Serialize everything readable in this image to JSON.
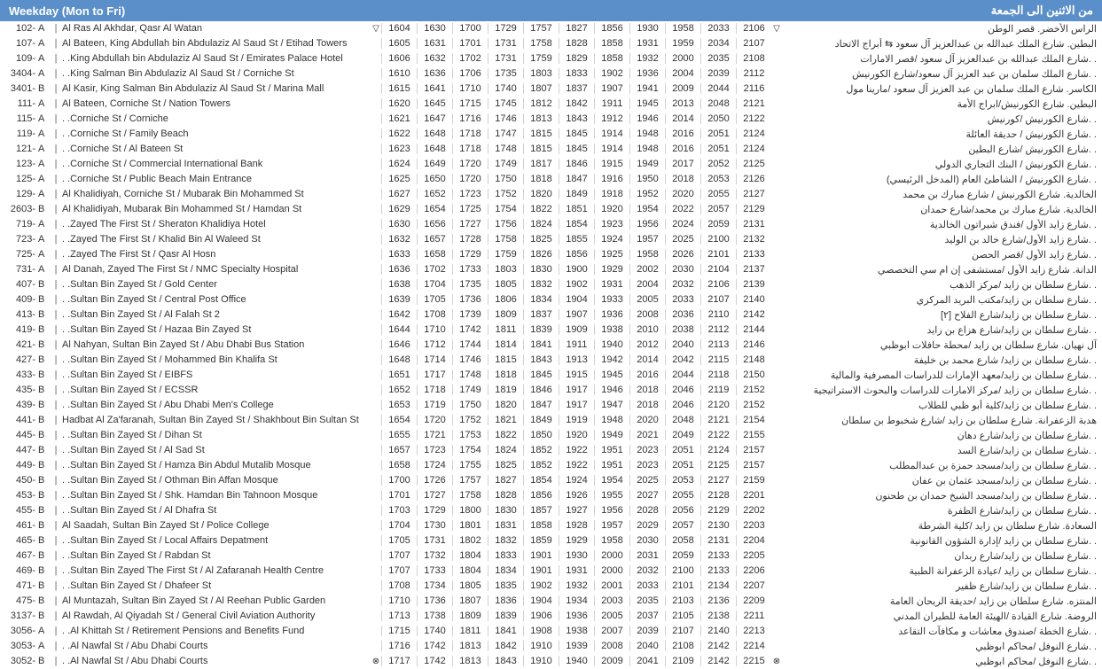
{
  "header": {
    "left": "Weekday (Mon to Fri)",
    "right": "من الاثنين الى الجمعة"
  },
  "colors": {
    "header_bg": "#5b8fc9",
    "header_fg": "#ffffff",
    "text": "#333333",
    "border": "#d0d0d0"
  },
  "rows": [
    {
      "code": "102-",
      "side": "A",
      "stop": "Al Ras Al Akhdar, Qasr Al Watan",
      "marker": "▽",
      "times": [
        "1604",
        "1630",
        "1700",
        "1729",
        "1757",
        "1827",
        "1856",
        "1930",
        "1958",
        "2033",
        "2106"
      ],
      "markerR": "▽",
      "ar": "الراس الأخضر. قصر الوطن"
    },
    {
      "code": "107-",
      "side": "A",
      "stop": "Al Bateen, King Abdullah bin Abdulaziz Al Saud St / Etihad Towers",
      "marker": "",
      "times": [
        "1605",
        "1631",
        "1701",
        "1731",
        "1758",
        "1828",
        "1858",
        "1931",
        "1959",
        "2034",
        "2107"
      ],
      "markerR": "",
      "ar": "البطين. شارع الملك عبدالله بن عبدالعزيز آل سعود ⇆ أبراج الاتحاد"
    },
    {
      "code": "109-",
      "side": "A",
      "stop": ". .King Abdullah bin Abdulaziz Al Saud St / Emirates Palace Hotel",
      "marker": "",
      "times": [
        "1606",
        "1632",
        "1702",
        "1731",
        "1759",
        "1829",
        "1858",
        "1932",
        "2000",
        "2035",
        "2108"
      ],
      "markerR": "",
      "ar": ". .شارع الملك عبدالله بن عبدالعزيز آل سعود /قصر الامارات"
    },
    {
      "code": "3404-",
      "side": "A",
      "stop": ". .King Salman Bin Abdulaziz Al Saud St / Corniche St",
      "marker": "",
      "times": [
        "1610",
        "1636",
        "1706",
        "1735",
        "1803",
        "1833",
        "1902",
        "1936",
        "2004",
        "2039",
        "2112"
      ],
      "markerR": "",
      "ar": ". .شارع الملك سلمان بن عبد العزيز آل سعود/شارع الكورنيش"
    },
    {
      "code": "3401-",
      "side": "B",
      "stop": "Al Kasir, King Salman Bin Abdulaziz Al Saud St / Marina Mall",
      "marker": "",
      "times": [
        "1615",
        "1641",
        "1710",
        "1740",
        "1807",
        "1837",
        "1907",
        "1941",
        "2009",
        "2044",
        "2116"
      ],
      "markerR": "",
      "ar": "الكاسر. شارع الملك سلمان بن عبد العزيز آل سعود /مارينا مول"
    },
    {
      "code": "111-",
      "side": "A",
      "stop": "Al Bateen, Corniche St / Nation Towers",
      "marker": "",
      "times": [
        "1620",
        "1645",
        "1715",
        "1745",
        "1812",
        "1842",
        "1911",
        "1945",
        "2013",
        "2048",
        "2121"
      ],
      "markerR": "",
      "ar": "البطين. شارع الكورنيش/ابراج الأمة"
    },
    {
      "code": "115-",
      "side": "A",
      "stop": ". .Corniche St / Corniche",
      "marker": "",
      "times": [
        "1621",
        "1647",
        "1716",
        "1746",
        "1813",
        "1843",
        "1912",
        "1946",
        "2014",
        "2050",
        "2122"
      ],
      "markerR": "",
      "ar": ". .شارع الكورنيش /كورنيش"
    },
    {
      "code": "119-",
      "side": "A",
      "stop": ". .Corniche St / Family Beach",
      "marker": "",
      "times": [
        "1622",
        "1648",
        "1718",
        "1747",
        "1815",
        "1845",
        "1914",
        "1948",
        "2016",
        "2051",
        "2124"
      ],
      "markerR": "",
      "ar": ". .شارع الكورنيش / حديقة العائلة"
    },
    {
      "code": "121-",
      "side": "A",
      "stop": ". .Corniche St / Al Bateen St",
      "marker": "",
      "times": [
        "1623",
        "1648",
        "1718",
        "1748",
        "1815",
        "1845",
        "1914",
        "1948",
        "2016",
        "2051",
        "2124"
      ],
      "markerR": "",
      "ar": ". .شارع الكورنيش /شارع البطين"
    },
    {
      "code": "123-",
      "side": "A",
      "stop": ". .Corniche St / Commercial International Bank",
      "marker": "",
      "times": [
        "1624",
        "1649",
        "1720",
        "1749",
        "1817",
        "1846",
        "1915",
        "1949",
        "2017",
        "2052",
        "2125"
      ],
      "markerR": "",
      "ar": ". .شارع الكورنيش / البنك التجاري الدولي"
    },
    {
      "code": "125-",
      "side": "A",
      "stop": ". .Corniche St / Public Beach Main Entrance",
      "marker": "",
      "times": [
        "1625",
        "1650",
        "1720",
        "1750",
        "1818",
        "1847",
        "1916",
        "1950",
        "2018",
        "2053",
        "2126"
      ],
      "markerR": "",
      "ar": ". .شارع الكورنيش / الشاطئ العام (المدخل الرئيسي)"
    },
    {
      "code": "129-",
      "side": "A",
      "stop": "Al Khalidiyah, Corniche St / Mubarak Bin Mohammed St",
      "marker": "",
      "times": [
        "1627",
        "1652",
        "1723",
        "1752",
        "1820",
        "1849",
        "1918",
        "1952",
        "2020",
        "2055",
        "2127"
      ],
      "markerR": "",
      "ar": "الخالدية. شارع الكورنيش / شارع مبارك بن محمد"
    },
    {
      "code": "2603-",
      "side": "B",
      "stop": "Al Khalidiyah, Mubarak Bin Mohammed St / Hamdan St",
      "marker": "",
      "times": [
        "1629",
        "1654",
        "1725",
        "1754",
        "1822",
        "1851",
        "1920",
        "1954",
        "2022",
        "2057",
        "2129"
      ],
      "markerR": "",
      "ar": "الخالدية. شارع مبارك بن محمد/شارع حمدان"
    },
    {
      "code": "719-",
      "side": "A",
      "stop": ". .Zayed The First St / Sheraton Khalidiya Hotel",
      "marker": "",
      "times": [
        "1630",
        "1656",
        "1727",
        "1756",
        "1824",
        "1854",
        "1923",
        "1956",
        "2024",
        "2059",
        "2131"
      ],
      "markerR": "",
      "ar": ". .شارع زايد الأول /فندق شيراتون الخالدية"
    },
    {
      "code": "723-",
      "side": "A",
      "stop": ". .Zayed The First St / Khalid Bin Al Waleed St",
      "marker": "",
      "times": [
        "1632",
        "1657",
        "1728",
        "1758",
        "1825",
        "1855",
        "1924",
        "1957",
        "2025",
        "2100",
        "2132"
      ],
      "markerR": "",
      "ar": ". .شارع زايد الأول/شارع خالد بن الوليد"
    },
    {
      "code": "725-",
      "side": "A",
      "stop": ". .Zayed The First St / Qasr Al Hosn",
      "marker": "",
      "times": [
        "1633",
        "1658",
        "1729",
        "1759",
        "1826",
        "1856",
        "1925",
        "1958",
        "2026",
        "2101",
        "2133"
      ],
      "markerR": "",
      "ar": ". .شارع زايد الأول /قصر الحصن"
    },
    {
      "code": "731-",
      "side": "A",
      "stop": "Al Danah, Zayed The First St / NMC Specialty Hospital",
      "marker": "",
      "times": [
        "1636",
        "1702",
        "1733",
        "1803",
        "1830",
        "1900",
        "1929",
        "2002",
        "2030",
        "2104",
        "2137"
      ],
      "markerR": "",
      "ar": "الدانة. شارع زايد الأول /مستشفى إن ام سي التخصصي"
    },
    {
      "code": "407-",
      "side": "B",
      "stop": ". .Sultan Bin Zayed St / Gold Center",
      "marker": "",
      "times": [
        "1638",
        "1704",
        "1735",
        "1805",
        "1832",
        "1902",
        "1931",
        "2004",
        "2032",
        "2106",
        "2139"
      ],
      "markerR": "",
      "ar": ". .شارع سلطان بن زايد /مركز الذهب"
    },
    {
      "code": "409-",
      "side": "B",
      "stop": ". .Sultan Bin Zayed St / Central Post Office",
      "marker": "",
      "times": [
        "1639",
        "1705",
        "1736",
        "1806",
        "1834",
        "1904",
        "1933",
        "2005",
        "2033",
        "2107",
        "2140"
      ],
      "markerR": "",
      "ar": ". .شارع سلطان بن زايد/مكتب البريد المركزي"
    },
    {
      "code": "413-",
      "side": "B",
      "stop": ". .Sultan Bin Zayed St / Al Falah St 2",
      "marker": "",
      "times": [
        "1642",
        "1708",
        "1739",
        "1809",
        "1837",
        "1907",
        "1936",
        "2008",
        "2036",
        "2110",
        "2142"
      ],
      "markerR": "",
      "ar": ". .شارع سلطان بن زايد/شارع الفلاح [٢]"
    },
    {
      "code": "419-",
      "side": "B",
      "stop": ". .Sultan Bin Zayed St / Hazaa Bin Zayed St",
      "marker": "",
      "times": [
        "1644",
        "1710",
        "1742",
        "1811",
        "1839",
        "1909",
        "1938",
        "2010",
        "2038",
        "2112",
        "2144"
      ],
      "markerR": "",
      "ar": ". .شارع سلطان بن زايد/شارع هزاع بن زايد"
    },
    {
      "code": "421-",
      "side": "B",
      "stop": "Al Nahyan, Sultan Bin Zayed St / Abu Dhabi Bus Station",
      "marker": "",
      "times": [
        "1646",
        "1712",
        "1744",
        "1814",
        "1841",
        "1911",
        "1940",
        "2012",
        "2040",
        "2113",
        "2146"
      ],
      "markerR": "",
      "ar": "آل نهيان. شارع سلطان بن زايد /محطة حافلات ابوظبي"
    },
    {
      "code": "427-",
      "side": "B",
      "stop": ". .Sultan Bin Zayed St / Mohammed Bin Khalifa St",
      "marker": "",
      "times": [
        "1648",
        "1714",
        "1746",
        "1815",
        "1843",
        "1913",
        "1942",
        "2014",
        "2042",
        "2115",
        "2148"
      ],
      "markerR": "",
      "ar": ". .شارع سلطان بن زايد/ شارع محمد بن خليفة"
    },
    {
      "code": "433-",
      "side": "B",
      "stop": ". .Sultan Bin Zayed St / EIBFS",
      "marker": "",
      "times": [
        "1651",
        "1717",
        "1748",
        "1818",
        "1845",
        "1915",
        "1945",
        "2016",
        "2044",
        "2118",
        "2150"
      ],
      "markerR": "",
      "ar": ". .شارع سلطان بن زايد/معهد الإمارات للدراسات المصرفية والمالية"
    },
    {
      "code": "435-",
      "side": "B",
      "stop": ". .Sultan Bin Zayed St / ECSSR",
      "marker": "",
      "times": [
        "1652",
        "1718",
        "1749",
        "1819",
        "1846",
        "1917",
        "1946",
        "2018",
        "2046",
        "2119",
        "2152"
      ],
      "markerR": "",
      "ar": ". .شارع سلطان بن زايد /مركز الامارات للدراسات والبحوث الاستراتيجية"
    },
    {
      "code": "439-",
      "side": "B",
      "stop": ". .Sultan Bin Zayed St / Abu Dhabi Men's College",
      "marker": "",
      "times": [
        "1653",
        "1719",
        "1750",
        "1820",
        "1847",
        "1917",
        "1947",
        "2018",
        "2046",
        "2120",
        "2152"
      ],
      "markerR": "",
      "ar": ". .شارع سلطان بن زايد/كلية أبو ظبي للطلاب"
    },
    {
      "code": "441-",
      "side": "B",
      "stop": "Hadbat Al Za'faranah, Sultan Bin Zayed St / Shakhbout Bin Sultan St",
      "marker": "",
      "times": [
        "1654",
        "1720",
        "1752",
        "1821",
        "1849",
        "1919",
        "1948",
        "2020",
        "2048",
        "2121",
        "2154"
      ],
      "markerR": "",
      "ar": "هدبة الزعفرانة. شارع سلطان بن زايد /شارع شخبوط بن سلطان"
    },
    {
      "code": "445-",
      "side": "B",
      "stop": ". .Sultan Bin Zayed St / Dihan St",
      "marker": "",
      "times": [
        "1655",
        "1721",
        "1753",
        "1822",
        "1850",
        "1920",
        "1949",
        "2021",
        "2049",
        "2122",
        "2155"
      ],
      "markerR": "",
      "ar": ". .شارع سلطان بن زايد/شارع دهان"
    },
    {
      "code": "447-",
      "side": "B",
      "stop": ". .Sultan Bin Zayed St / Al Sad St",
      "marker": "",
      "times": [
        "1657",
        "1723",
        "1754",
        "1824",
        "1852",
        "1922",
        "1951",
        "2023",
        "2051",
        "2124",
        "2157"
      ],
      "markerR": "",
      "ar": ". .شارع سلطان بن زايد/شارع السد"
    },
    {
      "code": "449-",
      "side": "B",
      "stop": ". .Sultan Bin Zayed St / Hamza Bin Abdul Mutalib Mosque",
      "marker": "",
      "times": [
        "1658",
        "1724",
        "1755",
        "1825",
        "1852",
        "1922",
        "1951",
        "2023",
        "2051",
        "2125",
        "2157"
      ],
      "markerR": "",
      "ar": ". .شارع سلطان بن زايد/مسجد حمزة بن عبدالمطلب"
    },
    {
      "code": "450-",
      "side": "B",
      "stop": ". .Sultan Bin Zayed St / Othman Bin Affan Mosque",
      "marker": "",
      "times": [
        "1700",
        "1726",
        "1757",
        "1827",
        "1854",
        "1924",
        "1954",
        "2025",
        "2053",
        "2127",
        "2159"
      ],
      "markerR": "",
      "ar": ". .شارع سلطان بن زايد/مسجد عثمان بن عفان"
    },
    {
      "code": "453-",
      "side": "B",
      "stop": ". .Sultan Bin Zayed St / Shk. Hamdan Bin Tahnoon Mosque",
      "marker": "",
      "times": [
        "1701",
        "1727",
        "1758",
        "1828",
        "1856",
        "1926",
        "1955",
        "2027",
        "2055",
        "2128",
        "2201"
      ],
      "markerR": "",
      "ar": ". .شارع سلطان بن زايد/مسجد الشيخ حمدان بن طحنون"
    },
    {
      "code": "455-",
      "side": "B",
      "stop": ". .Sultan Bin Zayed St / Al Dhafra St",
      "marker": "",
      "times": [
        "1703",
        "1729",
        "1800",
        "1830",
        "1857",
        "1927",
        "1956",
        "2028",
        "2056",
        "2129",
        "2202"
      ],
      "markerR": "",
      "ar": ". .شارع سلطان بن زايد/شارع الظفرة"
    },
    {
      "code": "461-",
      "side": "B",
      "stop": "Al Saadah, Sultan Bin Zayed St / Police College",
      "marker": "",
      "times": [
        "1704",
        "1730",
        "1801",
        "1831",
        "1858",
        "1928",
        "1957",
        "2029",
        "2057",
        "2130",
        "2203"
      ],
      "markerR": "",
      "ar": "السعادة. شارع سلطان بن زايد /كلية الشرطة"
    },
    {
      "code": "465-",
      "side": "B",
      "stop": ". .Sultan Bin Zayed St / Local Affairs Depatment",
      "marker": "",
      "times": [
        "1705",
        "1731",
        "1802",
        "1832",
        "1859",
        "1929",
        "1958",
        "2030",
        "2058",
        "2131",
        "2204"
      ],
      "markerR": "",
      "ar": ". .شارع سلطان بن زايد /إدارة الشؤون القانونية"
    },
    {
      "code": "467-",
      "side": "B",
      "stop": ". .Sultan Bin Zayed St / Rabdan St",
      "marker": "",
      "times": [
        "1707",
        "1732",
        "1804",
        "1833",
        "1901",
        "1930",
        "2000",
        "2031",
        "2059",
        "2133",
        "2205"
      ],
      "markerR": "",
      "ar": ". .شارع سلطان بن زايد/شارع ربدان"
    },
    {
      "code": "469-",
      "side": "B",
      "stop": ". .Sultan Bin Zayed The First St / Al Zafaranah Health Centre",
      "marker": "",
      "times": [
        "1707",
        "1733",
        "1804",
        "1834",
        "1901",
        "1931",
        "2000",
        "2032",
        "2100",
        "2133",
        "2206"
      ],
      "markerR": "",
      "ar": ". .شارع سلطان بن زايد /عيادة الزعفرانة الطبية"
    },
    {
      "code": "471-",
      "side": "B",
      "stop": ". .Sultan Bin Zayed St / Dhafeer St",
      "marker": "",
      "times": [
        "1708",
        "1734",
        "1805",
        "1835",
        "1902",
        "1932",
        "2001",
        "2033",
        "2101",
        "2134",
        "2207"
      ],
      "markerR": "",
      "ar": ". .شارع سلطان بن زايد/شارع ظفير"
    },
    {
      "code": "475-",
      "side": "B",
      "stop": "Al Muntazah, Sultan Bin Zayed St / Al Reehan Public Garden",
      "marker": "",
      "times": [
        "1710",
        "1736",
        "1807",
        "1836",
        "1904",
        "1934",
        "2003",
        "2035",
        "2103",
        "2136",
        "2209"
      ],
      "markerR": "",
      "ar": "المنتزه. شارع سلطان بن زايد /حديقة الريحان العامة"
    },
    {
      "code": "3137-",
      "side": "B",
      "stop": "Al Rawdah, Al Qiyadah St / General Civil Aviation Authority",
      "marker": "",
      "times": [
        "1713",
        "1738",
        "1809",
        "1839",
        "1906",
        "1936",
        "2005",
        "2037",
        "2105",
        "2138",
        "2211"
      ],
      "markerR": "",
      "ar": "الروضة. شارع القيادة /الهيئة العامة للطيران المدني"
    },
    {
      "code": "3056-",
      "side": "A",
      "stop": ". .Al Khittah St / Retirement Pensions and Benefits Fund",
      "marker": "",
      "times": [
        "1715",
        "1740",
        "1811",
        "1841",
        "1908",
        "1938",
        "2007",
        "2039",
        "2107",
        "2140",
        "2213"
      ],
      "markerR": "",
      "ar": ". .شارع الخطة /صندوق معاشات و مكافآت التقاعد"
    },
    {
      "code": "3053-",
      "side": "A",
      "stop": ". .Al Nawfal St / Abu Dhabi Courts",
      "marker": "",
      "times": [
        "1716",
        "1742",
        "1813",
        "1842",
        "1910",
        "1939",
        "2008",
        "2040",
        "2108",
        "2142",
        "2214"
      ],
      "markerR": "",
      "ar": ". .شارع النوفل /محاكم ابوظبي"
    },
    {
      "code": "3052-",
      "side": "B",
      "stop": ". .Al Nawfal St / Abu Dhabi Courts",
      "marker": "⊗",
      "times": [
        "1717",
        "1742",
        "1813",
        "1843",
        "1910",
        "1940",
        "2009",
        "2041",
        "2109",
        "2142",
        "2215"
      ],
      "markerR": "⊗",
      "ar": ". .شارع النوفل /محاكم ابوظبي"
    }
  ]
}
